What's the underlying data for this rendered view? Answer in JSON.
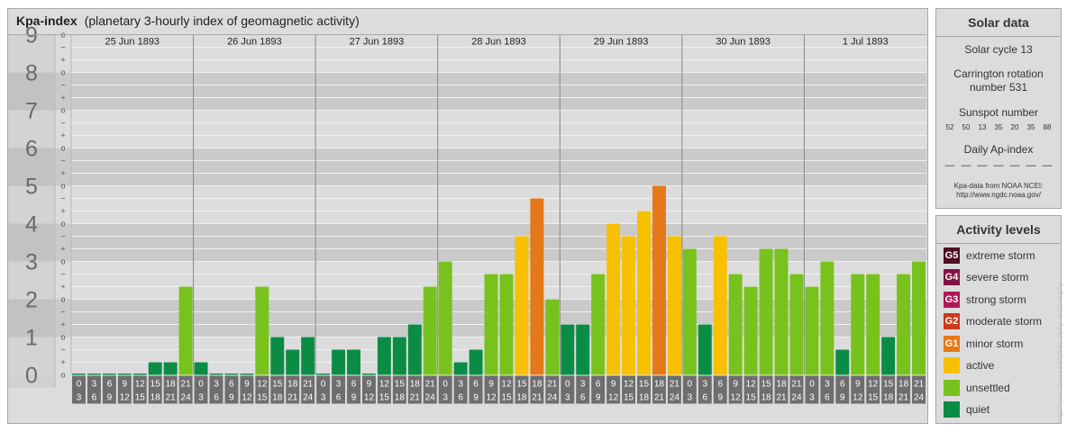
{
  "header": {
    "title": "Kpa-index",
    "subtitle": "(planetary 3-hourly index of geomagnetic activity)"
  },
  "chart_data": {
    "type": "bar",
    "title": "Kpa-index",
    "subtitle": "(planetary 3-hourly index of geomagnetic activity)",
    "ylim": [
      0,
      9
    ],
    "y_ticks": [
      "0",
      "1",
      "2",
      "3",
      "4",
      "5",
      "6",
      "7",
      "8",
      "9"
    ],
    "y_subticks": [
      "o",
      "+",
      "−"
    ],
    "days": [
      "25 Jun 1893",
      "26 Jun 1893",
      "27 Jun 1893",
      "28 Jun 1893",
      "29 Jun 1893",
      "30 Jun 1893",
      "1 Jul 1893"
    ],
    "interval_starts": [
      "0",
      "3",
      "6",
      "9",
      "12",
      "15",
      "18",
      "21"
    ],
    "interval_ends": [
      "3",
      "6",
      "9",
      "12",
      "15",
      "18",
      "21",
      "24"
    ],
    "values": [
      [
        0,
        0,
        0,
        0,
        0,
        0.333,
        0.333,
        2.333
      ],
      [
        0.333,
        0,
        0,
        0,
        2.333,
        1,
        0.667,
        1
      ],
      [
        0,
        0.667,
        0.667,
        0,
        1,
        1,
        1.333,
        2.333
      ],
      [
        3,
        0.333,
        0.667,
        2.667,
        2.667,
        3.667,
        4.667,
        2
      ],
      [
        1.333,
        1.333,
        2.667,
        4,
        3.667,
        4.333,
        5,
        3.667
      ],
      [
        3.333,
        1.333,
        3.667,
        2.667,
        2.333,
        3.333,
        3.333,
        2.667
      ],
      [
        2.333,
        3,
        0.667,
        2.667,
        2.667,
        1,
        2.667,
        3
      ]
    ],
    "colors": {
      "quiet": "#0b8c45",
      "unsettled": "#78c21d",
      "active": "#f7c000",
      "minor_storm": "#e57818",
      "moderate_storm": "#cc3a1c",
      "strong_storm": "#b01858",
      "severe_storm": "#821445",
      "extreme_storm": "#510b22"
    },
    "grid": true
  },
  "solar": {
    "title": "Solar data",
    "cycle": "Solar cycle 13",
    "carrington_line1": "Carrington rotation",
    "carrington_line2": "number 531",
    "sunspot_label": "Sunspot number",
    "sunspot_values": [
      "52",
      "50",
      "13",
      "35",
      "20",
      "35",
      "88"
    ],
    "ap_label": "Daily Ap-index",
    "ap_values": [
      "—",
      "—",
      "—",
      "—",
      "—",
      "—",
      "—"
    ],
    "credit_line1": "Kpa-data from NOAA NCEI:",
    "credit_line2": "http://www.ngdc.noaa.gov/"
  },
  "activity": {
    "title": "Activity levels",
    "items": [
      {
        "code": "G5",
        "label": "extreme storm",
        "color": "#510b22"
      },
      {
        "code": "G4",
        "label": "severe storm",
        "color": "#821445"
      },
      {
        "code": "G3",
        "label": "strong storm",
        "color": "#b01858"
      },
      {
        "code": "G2",
        "label": "moderate storm",
        "color": "#cc3a1c"
      },
      {
        "code": "G1",
        "label": "minor storm",
        "color": "#e57818"
      },
      {
        "code": "",
        "label": "active",
        "color": "#f7c000"
      },
      {
        "code": "",
        "label": "unsettled",
        "color": "#78c21d"
      },
      {
        "code": "",
        "label": "quiet",
        "color": "#0b8c45"
      }
    ]
  },
  "watermark": "http://www.theusersfolkes.de/kp-archive.php"
}
